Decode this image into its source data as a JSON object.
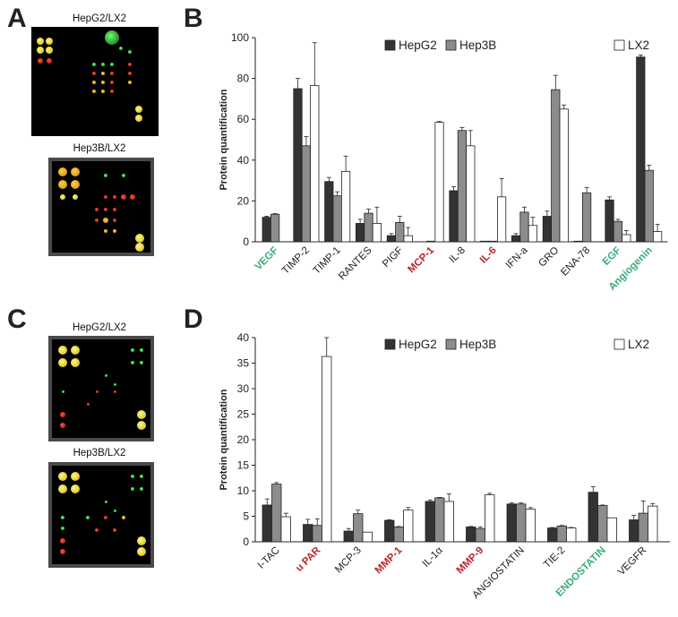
{
  "panels": {
    "A": {
      "letter": "A",
      "arrays": [
        {
          "title": "HepG2/LX2"
        },
        {
          "title": "Hep3B/LX2"
        }
      ]
    },
    "C": {
      "letter": "C",
      "arrays": [
        {
          "title": "HepG2/LX2"
        },
        {
          "title": "Hep3B/LX2"
        }
      ]
    },
    "B": {
      "letter": "B"
    },
    "D": {
      "letter": "D"
    }
  },
  "colors": {
    "HepG2": "#333333",
    "Hep3B": "#8c8c8c",
    "LX2": "#ffffff",
    "green_label": "#3aaa78",
    "red_label": "#b8262c",
    "black_label": "#222222"
  },
  "chart_data": [
    {
      "id": "B",
      "type": "bar",
      "title": "",
      "ylabel": "Protein quantification",
      "xlabel": "",
      "ylim": [
        0,
        100
      ],
      "yticks": [
        0,
        20,
        40,
        60,
        80,
        100
      ],
      "legend": [
        "HepG2",
        "Hep3B",
        "LX2"
      ],
      "legend_position": "top-right",
      "categories": [
        "VEGF",
        "TIMP-2",
        "TIMP-1",
        "RANTES",
        "PIGF",
        "MCP-1",
        "IL-8",
        "IL-6",
        "IFN-a",
        "GRO",
        "ENA-78",
        "EGF",
        "Angiogenin"
      ],
      "category_colors": [
        "green",
        "black",
        "black",
        "black",
        "black",
        "red",
        "black",
        "red",
        "black",
        "black",
        "black",
        "green",
        "black_green"
      ],
      "series": [
        {
          "name": "HepG2",
          "values": [
            12,
            75,
            29.5,
            9,
            3,
            0,
            25,
            0.3,
            3,
            12.5,
            0.3,
            20.5,
            90.5
          ],
          "errors": [
            0.5,
            5,
            2,
            2,
            1,
            0,
            2,
            0,
            1,
            2.5,
            0,
            1.5,
            1
          ]
        },
        {
          "name": "Hep3B",
          "values": [
            13.5,
            47,
            22.5,
            14,
            9.5,
            0.3,
            54.5,
            0.3,
            14.5,
            74.5,
            24,
            10,
            35
          ],
          "errors": [
            0.3,
            4.5,
            2,
            2,
            3,
            0,
            1.5,
            0,
            2.5,
            7,
            2.5,
            1,
            2.5
          ]
        },
        {
          "name": "LX2",
          "values": [
            0,
            76.5,
            34.5,
            9,
            3,
            58.5,
            47,
            22,
            8,
            65,
            0,
            3.5,
            5
          ],
          "errors": [
            0,
            21,
            7.5,
            8,
            4,
            0.4,
            7.5,
            9,
            4,
            2,
            0,
            2,
            3.5
          ]
        }
      ]
    },
    {
      "id": "D",
      "type": "bar",
      "title": "",
      "ylabel": "Protein quantification",
      "xlabel": "",
      "ylim": [
        0,
        40
      ],
      "yticks": [
        0,
        5,
        10,
        15,
        20,
        25,
        30,
        35,
        40
      ],
      "legend": [
        "HepG2",
        "Hep3B",
        "LX2"
      ],
      "legend_position": "top-right",
      "categories": [
        "I-TAC",
        "u PAR",
        "MCP-3",
        "MMP-1",
        "IL-1α",
        "MMP-9",
        "ANGIOSTATIN",
        "TIE-2",
        "ENDOSTATIN",
        "VEGFR"
      ],
      "category_colors": [
        "black",
        "red",
        "black",
        "red",
        "black",
        "red",
        "black",
        "black",
        "green",
        "black"
      ],
      "series": [
        {
          "name": "HepG2",
          "values": [
            7.2,
            3.4,
            2.1,
            4.2,
            7.9,
            2.9,
            7.4,
            2.7,
            9.7,
            4.3
          ],
          "errors": [
            1.2,
            1,
            0.5,
            0.1,
            0.3,
            0.1,
            0.2,
            0.1,
            1.1,
            0.9
          ]
        },
        {
          "name": "Hep3B",
          "values": [
            11.3,
            3.2,
            5.5,
            2.9,
            8.6,
            2.6,
            7.4,
            3.1,
            7.1,
            5.6
          ],
          "errors": [
            0.3,
            1.3,
            0.7,
            0.1,
            0.1,
            0.3,
            0.2,
            0.1,
            0.1,
            2.4
          ]
        },
        {
          "name": "LX2",
          "values": [
            4.9,
            36.3,
            1.9,
            6.2,
            7.9,
            9.2,
            6.4,
            2.7,
            4.7,
            7
          ],
          "errors": [
            0.7,
            3.7,
            0,
            0.5,
            1.5,
            0.3,
            0.3,
            0.1,
            0,
            0.5
          ]
        }
      ]
    }
  ]
}
